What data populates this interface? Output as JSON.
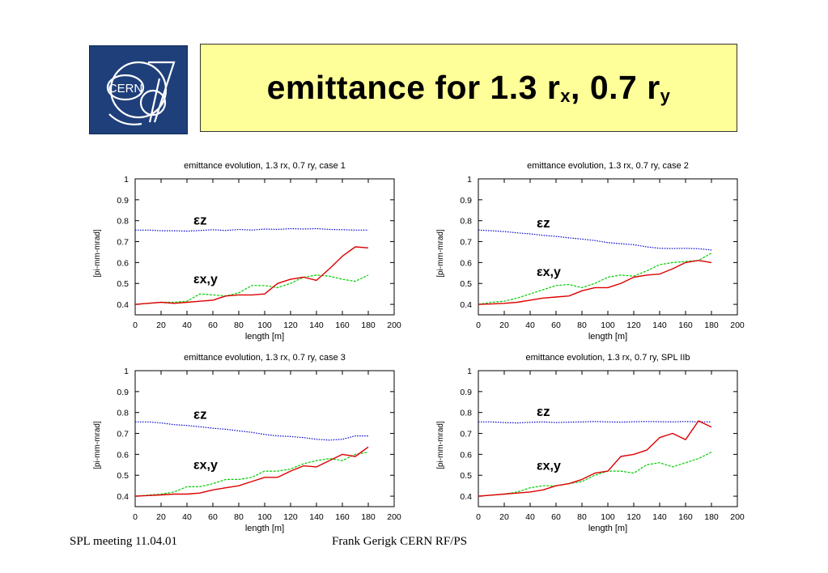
{
  "slide": {
    "title_main": "emittance for 1.3 r",
    "title_sub1": "x",
    "title_mid": ", 0.7 r",
    "title_sub2": "y",
    "logo_text": "CERN"
  },
  "footer": {
    "left": "SPL meeting 11.04.01",
    "center": "Frank Gerigk CERN RF/PS"
  },
  "colors": {
    "title_bg": "#ffff99",
    "logo_bg": "#1f3f7a",
    "ez_line": "#0000cc",
    "green_line": "#00cc00",
    "red_line": "#dd0000"
  },
  "chart_data": [
    {
      "type": "line",
      "title": "emittance evolution, 1.3 rx, 0.7 ry, case 1",
      "xlabel": "length [m]",
      "ylabel": "[pi-mm-mrad]",
      "xlim": [
        0,
        200
      ],
      "ylim": [
        0.35,
        1
      ],
      "xticks": [
        "0",
        "20",
        "40",
        "60",
        "80",
        "100",
        "120",
        "140",
        "160",
        "180",
        "200"
      ],
      "yticks": [
        "0.4",
        "0.5",
        "0.6",
        "0.7",
        "0.8",
        "0.9",
        "1"
      ],
      "annotations": [
        "εz",
        "εx,y"
      ],
      "x": [
        0,
        10,
        20,
        30,
        40,
        50,
        60,
        70,
        80,
        90,
        100,
        110,
        120,
        130,
        140,
        150,
        160,
        170,
        180
      ],
      "series": [
        {
          "color": "#0000cc",
          "style": "dotted",
          "values": [
            0.755,
            0.755,
            0.752,
            0.752,
            0.75,
            0.753,
            0.757,
            0.753,
            0.758,
            0.755,
            0.76,
            0.758,
            0.762,
            0.76,
            0.762,
            0.758,
            0.757,
            0.755,
            0.755
          ]
        },
        {
          "color": "#00cc00",
          "style": "dashed",
          "values": [
            0.4,
            0.405,
            0.41,
            0.41,
            0.415,
            0.45,
            0.445,
            0.44,
            0.455,
            0.49,
            0.49,
            0.48,
            0.5,
            0.53,
            0.54,
            0.535,
            0.52,
            0.51,
            0.54
          ]
        },
        {
          "color": "#dd0000",
          "style": "solid",
          "values": [
            0.4,
            0.405,
            0.41,
            0.405,
            0.41,
            0.415,
            0.42,
            0.44,
            0.445,
            0.445,
            0.45,
            0.5,
            0.52,
            0.53,
            0.515,
            0.57,
            0.63,
            0.675,
            0.67
          ]
        }
      ]
    },
    {
      "type": "line",
      "title": "emittance evolution, 1.3 rx, 0.7 ry, case 2",
      "xlabel": "length [m]",
      "ylabel": "[pi-mm-mrad]",
      "xlim": [
        0,
        200
      ],
      "ylim": [
        0.35,
        1
      ],
      "xticks": [
        "0",
        "20",
        "40",
        "60",
        "80",
        "100",
        "120",
        "140",
        "160",
        "180",
        "200"
      ],
      "yticks": [
        "0.4",
        "0.5",
        "0.6",
        "0.7",
        "0.8",
        "0.9",
        "1"
      ],
      "annotations": [
        "εz",
        "εx,y"
      ],
      "x": [
        0,
        10,
        20,
        30,
        40,
        50,
        60,
        70,
        80,
        90,
        100,
        110,
        120,
        130,
        140,
        150,
        160,
        170,
        180
      ],
      "series": [
        {
          "color": "#0000cc",
          "style": "dotted",
          "values": [
            0.755,
            0.752,
            0.748,
            0.742,
            0.737,
            0.73,
            0.725,
            0.718,
            0.712,
            0.705,
            0.695,
            0.69,
            0.685,
            0.675,
            0.668,
            0.667,
            0.668,
            0.666,
            0.66
          ]
        },
        {
          "color": "#00cc00",
          "style": "dashed",
          "values": [
            0.4,
            0.41,
            0.415,
            0.43,
            0.45,
            0.47,
            0.49,
            0.495,
            0.48,
            0.5,
            0.53,
            0.54,
            0.535,
            0.56,
            0.59,
            0.6,
            0.605,
            0.61,
            0.645
          ]
        },
        {
          "color": "#dd0000",
          "style": "solid",
          "values": [
            0.4,
            0.402,
            0.405,
            0.41,
            0.42,
            0.43,
            0.435,
            0.44,
            0.465,
            0.48,
            0.48,
            0.5,
            0.53,
            0.54,
            0.545,
            0.57,
            0.6,
            0.61,
            0.6
          ]
        }
      ]
    },
    {
      "type": "line",
      "title": "emittance evolution, 1.3 rx, 0.7 ry, case 3",
      "xlabel": "length [m]",
      "ylabel": "[pi-mm-mrad]",
      "xlim": [
        0,
        200
      ],
      "ylim": [
        0.35,
        1
      ],
      "xticks": [
        "0",
        "20",
        "40",
        "60",
        "80",
        "100",
        "120",
        "140",
        "160",
        "180",
        "200"
      ],
      "yticks": [
        "0.4",
        "0.5",
        "0.6",
        "0.7",
        "0.8",
        "0.9",
        "1"
      ],
      "annotations": [
        "εz",
        "εx,y"
      ],
      "x": [
        0,
        10,
        20,
        30,
        40,
        50,
        60,
        70,
        80,
        90,
        100,
        110,
        120,
        130,
        140,
        150,
        160,
        170,
        180
      ],
      "series": [
        {
          "color": "#0000cc",
          "style": "dotted",
          "values": [
            0.755,
            0.755,
            0.75,
            0.742,
            0.738,
            0.732,
            0.725,
            0.72,
            0.712,
            0.705,
            0.695,
            0.688,
            0.685,
            0.68,
            0.672,
            0.668,
            0.672,
            0.688,
            0.688
          ]
        },
        {
          "color": "#00cc00",
          "style": "dashed",
          "values": [
            0.4,
            0.405,
            0.41,
            0.42,
            0.445,
            0.445,
            0.46,
            0.48,
            0.48,
            0.49,
            0.52,
            0.52,
            0.53,
            0.555,
            0.57,
            0.58,
            0.57,
            0.6,
            0.61
          ]
        },
        {
          "color": "#dd0000",
          "style": "solid",
          "values": [
            0.4,
            0.403,
            0.406,
            0.41,
            0.41,
            0.415,
            0.43,
            0.44,
            0.45,
            0.47,
            0.49,
            0.49,
            0.52,
            0.545,
            0.54,
            0.57,
            0.6,
            0.59,
            0.635
          ]
        }
      ]
    },
    {
      "type": "line",
      "title": "emittance evolution, 1.3 rx, 0.7 ry, SPL IIb",
      "xlabel": "length [m]",
      "ylabel": "[pi-mm-mrad]",
      "xlim": [
        0,
        200
      ],
      "ylim": [
        0.35,
        1
      ],
      "xticks": [
        "0",
        "20",
        "40",
        "60",
        "80",
        "100",
        "120",
        "140",
        "160",
        "180",
        "200"
      ],
      "yticks": [
        "0.4",
        "0.5",
        "0.6",
        "0.7",
        "0.8",
        "0.9",
        "1"
      ],
      "annotations": [
        "εz",
        "εx,y"
      ],
      "x": [
        0,
        10,
        20,
        30,
        40,
        50,
        60,
        70,
        80,
        90,
        100,
        110,
        120,
        130,
        140,
        150,
        160,
        170,
        180
      ],
      "series": [
        {
          "color": "#0000cc",
          "style": "dotted",
          "values": [
            0.755,
            0.755,
            0.752,
            0.75,
            0.753,
            0.755,
            0.752,
            0.754,
            0.755,
            0.757,
            0.755,
            0.754,
            0.756,
            0.757,
            0.756,
            0.755,
            0.757,
            0.755,
            0.755
          ]
        },
        {
          "color": "#00cc00",
          "style": "dashed",
          "values": [
            0.4,
            0.405,
            0.41,
            0.42,
            0.44,
            0.45,
            0.45,
            0.46,
            0.47,
            0.5,
            0.52,
            0.52,
            0.51,
            0.55,
            0.56,
            0.54,
            0.56,
            0.58,
            0.61
          ]
        },
        {
          "color": "#dd0000",
          "style": "solid",
          "values": [
            0.4,
            0.405,
            0.41,
            0.415,
            0.42,
            0.43,
            0.45,
            0.46,
            0.48,
            0.51,
            0.52,
            0.59,
            0.6,
            0.62,
            0.68,
            0.7,
            0.67,
            0.76,
            0.73
          ]
        }
      ]
    }
  ]
}
